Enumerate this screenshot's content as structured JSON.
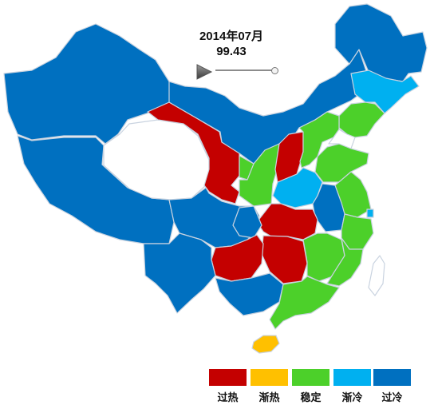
{
  "header": {
    "date": "2014年07月",
    "value": "99.43"
  },
  "colors": {
    "overheat": "#c40000",
    "warming": "#ffc000",
    "stable": "#4cd02a",
    "cooling": "#00b0f0",
    "overcool": "#0070c0",
    "border": "#c9d3e0"
  },
  "legend": [
    {
      "label": "过热",
      "color": "#c40000"
    },
    {
      "label": "渐热",
      "color": "#ffc000"
    },
    {
      "label": "稳定",
      "color": "#4cd02a"
    },
    {
      "label": "渐冷",
      "color": "#00b0f0"
    },
    {
      "label": "过冷",
      "color": "#0070c0"
    }
  ],
  "controls": {
    "play_icon": "play-icon",
    "slider_level": 1.0
  }
}
